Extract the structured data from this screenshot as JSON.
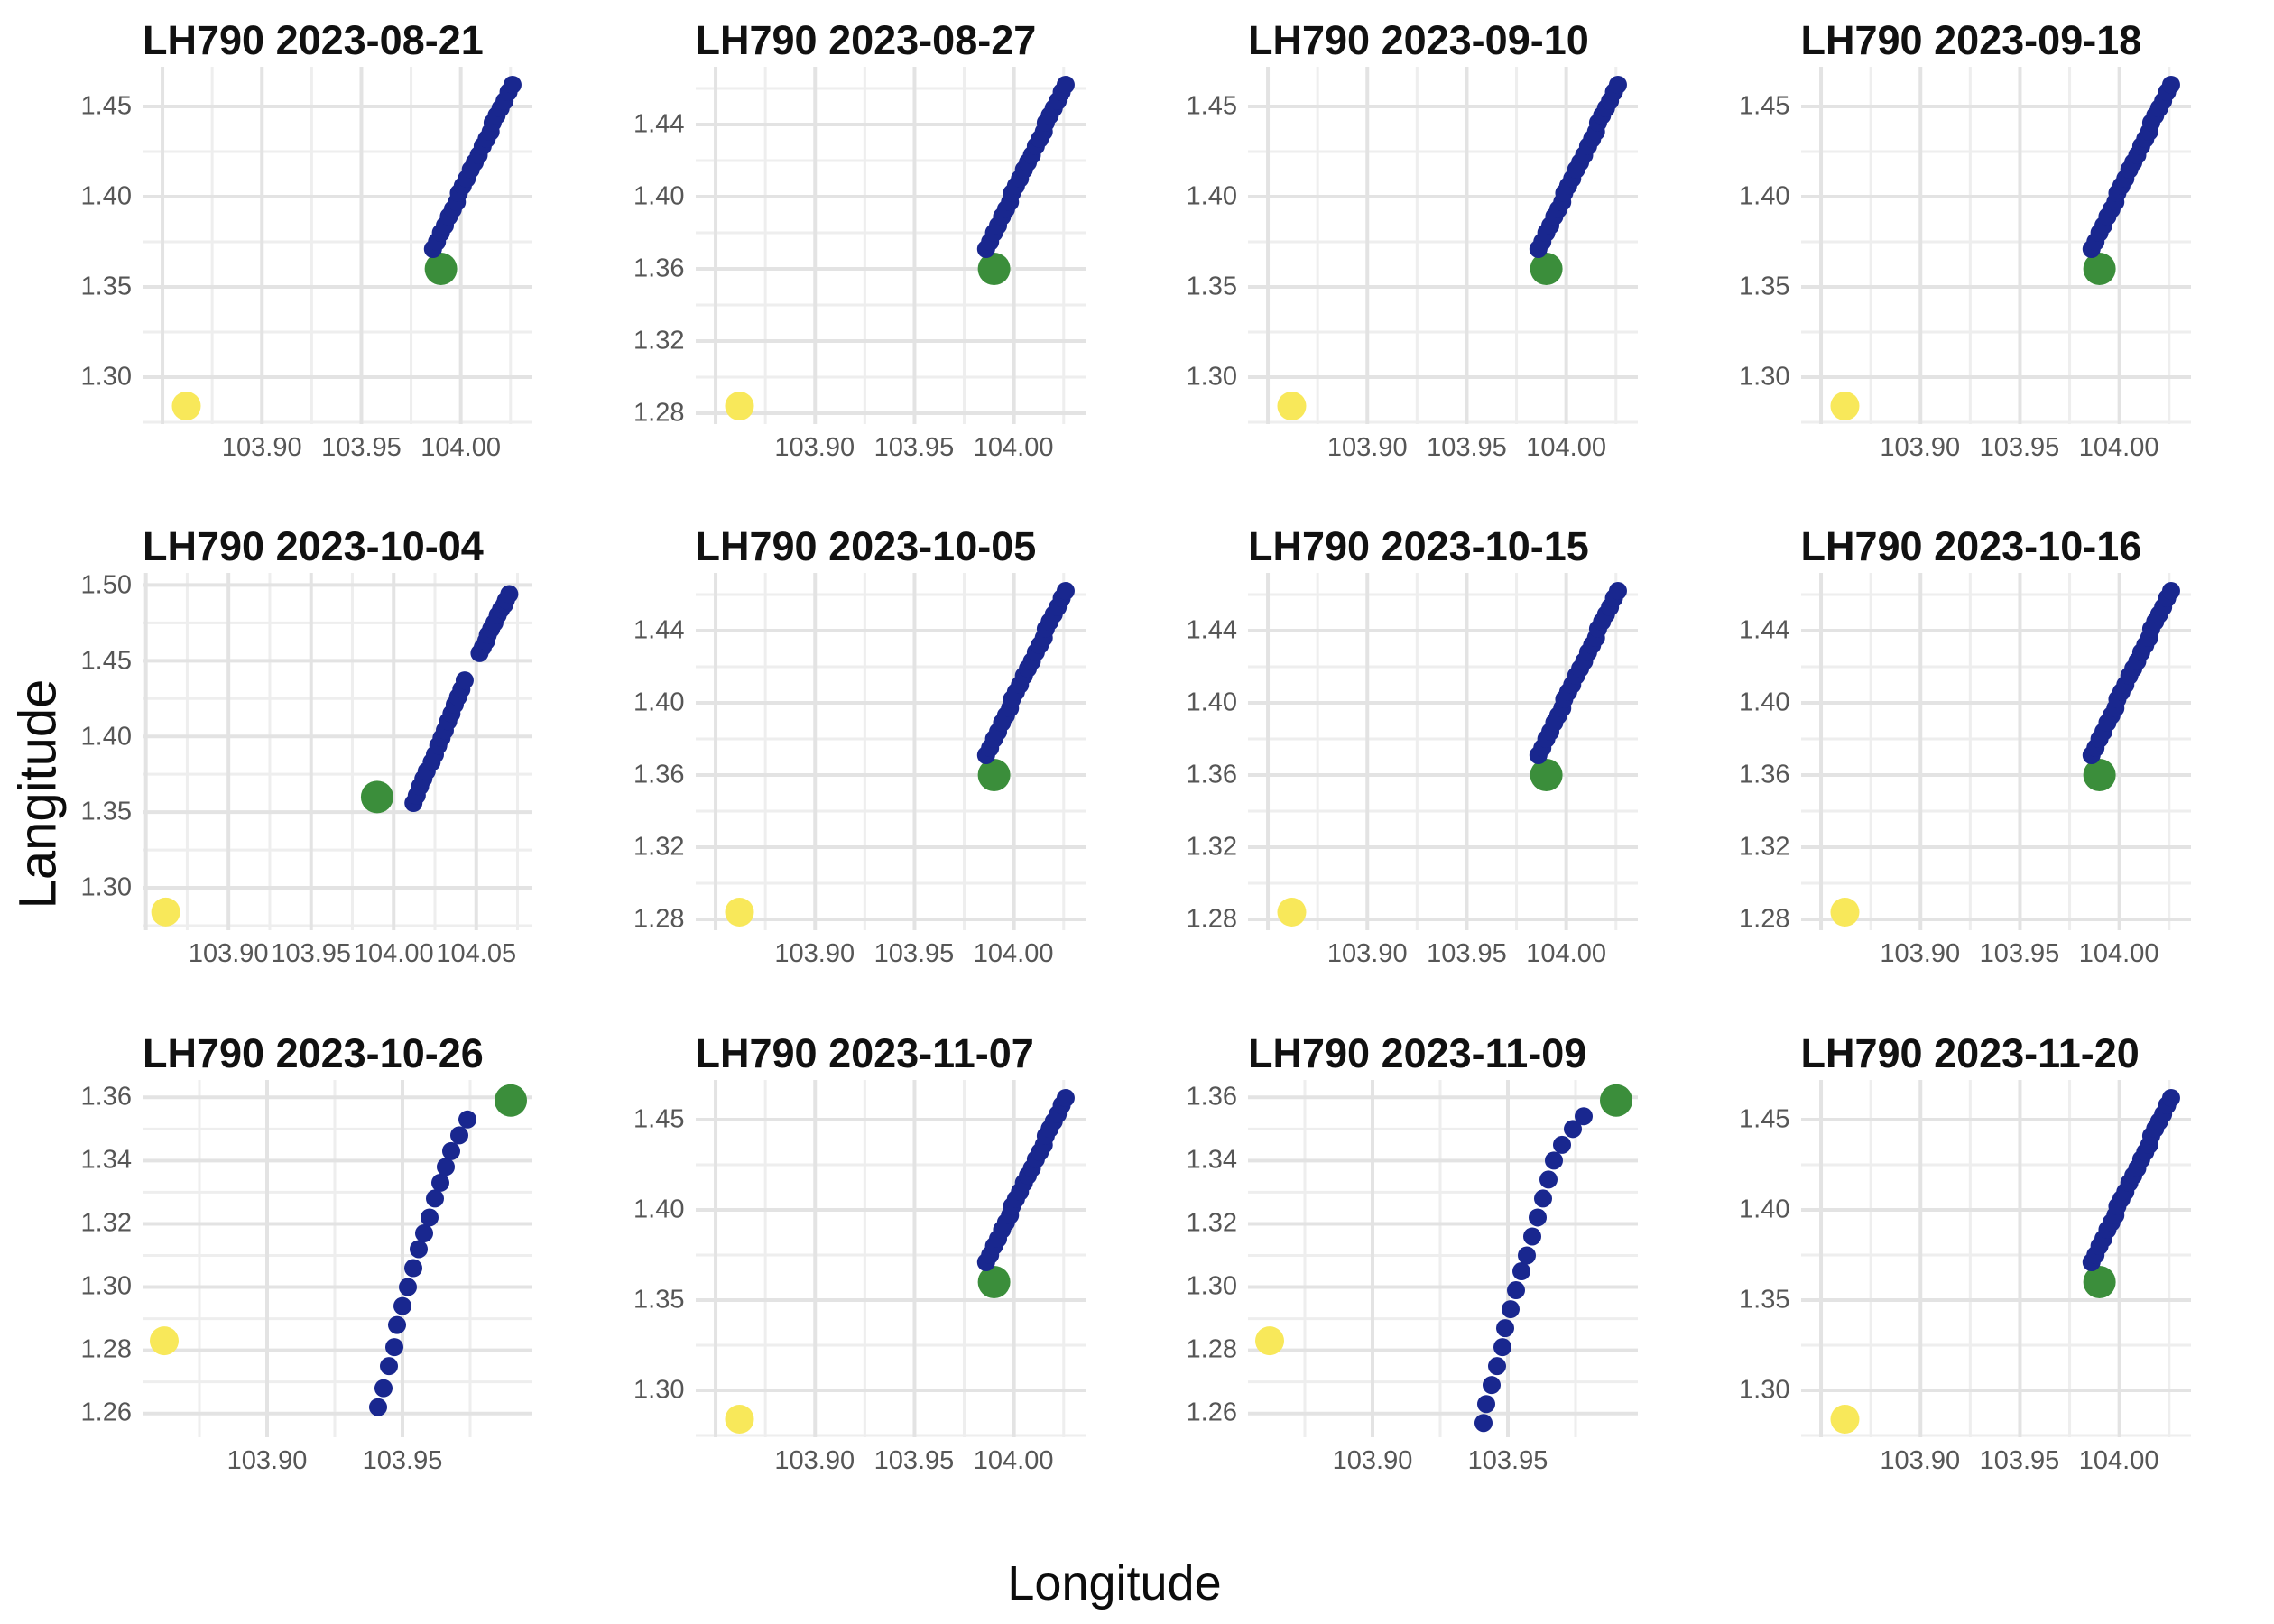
{
  "figure": {
    "x_axis_label": "Longitude",
    "y_axis_label": "Langitude"
  },
  "colors": {
    "background": "#ffffff",
    "title_text": "#111111",
    "axis_label_text": "#0c0c0c",
    "tick_label_text": "#565656",
    "gridline_major": "#e3e3e3",
    "gridline_minor": "#eeeeee",
    "blue_track_point": "#19278f",
    "green_point": "#3b8e3b",
    "yellow_point": "#f8e85a"
  },
  "marker_sizes": {
    "blue_r": 10,
    "green_r": 18,
    "yellow_r": 16
  },
  "chart_data": {
    "type": "scatter",
    "layout": "4x3 small multiples",
    "xlabel": "Longitude",
    "ylabel": "Langitude",
    "grid": "on",
    "legend": "none",
    "tracks": {
      "standard": [
        [
          103.986,
          1.371
        ],
        [
          103.988,
          1.375
        ],
        [
          103.99,
          1.38
        ],
        [
          103.992,
          1.384
        ],
        [
          103.994,
          1.389
        ],
        [
          103.996,
          1.393
        ],
        [
          103.998,
          1.397
        ],
        [
          103.999,
          1.402
        ],
        [
          104.001,
          1.406
        ],
        [
          104.003,
          1.41
        ],
        [
          104.005,
          1.415
        ],
        [
          104.007,
          1.419
        ],
        [
          104.009,
          1.423
        ],
        [
          104.011,
          1.428
        ],
        [
          104.013,
          1.432
        ],
        [
          104.015,
          1.436
        ],
        [
          104.016,
          1.441
        ],
        [
          104.018,
          1.445
        ],
        [
          104.02,
          1.449
        ],
        [
          104.022,
          1.453
        ],
        [
          104.024,
          1.458
        ],
        [
          104.026,
          1.462
        ]
      ],
      "extended_ne": [
        [
          104.012,
          1.356
        ],
        [
          104.014,
          1.361
        ],
        [
          104.016,
          1.367
        ],
        [
          104.018,
          1.372
        ],
        [
          104.02,
          1.377
        ],
        [
          104.023,
          1.383
        ],
        [
          104.025,
          1.388
        ],
        [
          104.027,
          1.394
        ],
        [
          104.029,
          1.399
        ],
        [
          104.031,
          1.404
        ],
        [
          104.033,
          1.41
        ],
        [
          104.035,
          1.415
        ],
        [
          104.037,
          1.421
        ],
        [
          104.039,
          1.426
        ],
        [
          104.041,
          1.431
        ],
        [
          104.043,
          1.437
        ],
        [
          104.052,
          1.455
        ],
        [
          104.054,
          1.459
        ],
        [
          104.056,
          1.463
        ],
        [
          104.057,
          1.467
        ],
        [
          104.059,
          1.471
        ],
        [
          104.061,
          1.475
        ],
        [
          104.063,
          1.48
        ],
        [
          104.065,
          1.484
        ],
        [
          104.067,
          1.487
        ],
        [
          104.068,
          1.49
        ],
        [
          104.07,
          1.494
        ]
      ],
      "south_short": [
        [
          103.941,
          1.262
        ],
        [
          103.943,
          1.268
        ],
        [
          103.945,
          1.275
        ],
        [
          103.947,
          1.281
        ],
        [
          103.948,
          1.288
        ],
        [
          103.95,
          1.294
        ],
        [
          103.952,
          1.3
        ],
        [
          103.954,
          1.306
        ],
        [
          103.956,
          1.312
        ],
        [
          103.958,
          1.317
        ],
        [
          103.96,
          1.322
        ],
        [
          103.962,
          1.328
        ],
        [
          103.964,
          1.333
        ],
        [
          103.966,
          1.338
        ],
        [
          103.968,
          1.343
        ],
        [
          103.971,
          1.348
        ],
        [
          103.974,
          1.353
        ]
      ],
      "south_tall": [
        [
          103.941,
          1.257
        ],
        [
          103.942,
          1.263
        ],
        [
          103.944,
          1.269
        ],
        [
          103.946,
          1.275
        ],
        [
          103.948,
          1.281
        ],
        [
          103.949,
          1.287
        ],
        [
          103.951,
          1.293
        ],
        [
          103.953,
          1.299
        ],
        [
          103.955,
          1.305
        ],
        [
          103.957,
          1.31
        ],
        [
          103.959,
          1.316
        ],
        [
          103.961,
          1.322
        ],
        [
          103.963,
          1.328
        ],
        [
          103.965,
          1.334
        ],
        [
          103.967,
          1.34
        ],
        [
          103.97,
          1.345
        ],
        [
          103.974,
          1.35
        ],
        [
          103.978,
          1.354
        ]
      ]
    },
    "panels": [
      {
        "title": "LH790 2023-08-21",
        "xlim": [
          103.84,
          104.036
        ],
        "ylim": [
          1.274,
          1.472
        ],
        "x_ticks": [
          "103.90",
          "103.95",
          "104.00"
        ],
        "y_ticks": [
          "1.30",
          "1.35",
          "1.40",
          "1.45"
        ],
        "yellow": [
          103.862,
          1.284
        ],
        "green": [
          103.99,
          1.36
        ],
        "track": "standard"
      },
      {
        "title": "LH790 2023-08-27",
        "xlim": [
          103.84,
          104.036
        ],
        "ylim": [
          1.274,
          1.472
        ],
        "x_ticks": [
          "103.90",
          "103.95",
          "104.00"
        ],
        "y_ticks": [
          "1.28",
          "1.32",
          "1.36",
          "1.40",
          "1.44"
        ],
        "yellow": [
          103.862,
          1.284
        ],
        "green": [
          103.99,
          1.36
        ],
        "track": "standard"
      },
      {
        "title": "LH790 2023-09-10",
        "xlim": [
          103.84,
          104.036
        ],
        "ylim": [
          1.274,
          1.472
        ],
        "x_ticks": [
          "103.90",
          "103.95",
          "104.00"
        ],
        "y_ticks": [
          "1.30",
          "1.35",
          "1.40",
          "1.45"
        ],
        "yellow": [
          103.862,
          1.284
        ],
        "green": [
          103.99,
          1.36
        ],
        "track": "standard"
      },
      {
        "title": "LH790 2023-09-18",
        "xlim": [
          103.84,
          104.036
        ],
        "ylim": [
          1.274,
          1.472
        ],
        "x_ticks": [
          "103.90",
          "103.95",
          "104.00"
        ],
        "y_ticks": [
          "1.30",
          "1.35",
          "1.40",
          "1.45"
        ],
        "yellow": [
          103.862,
          1.284
        ],
        "green": [
          103.99,
          1.36
        ],
        "track": "standard"
      },
      {
        "title": "LH790 2023-10-04",
        "xlim": [
          103.848,
          104.084
        ],
        "ylim": [
          1.272,
          1.508
        ],
        "x_ticks": [
          "103.90",
          "103.95",
          "104.00",
          "104.05"
        ],
        "y_ticks": [
          "1.30",
          "1.35",
          "1.40",
          "1.45",
          "1.50"
        ],
        "yellow": [
          103.862,
          1.284
        ],
        "green": [
          103.99,
          1.36
        ],
        "track": "extended_ne"
      },
      {
        "title": "LH790 2023-10-05",
        "xlim": [
          103.84,
          104.036
        ],
        "ylim": [
          1.274,
          1.472
        ],
        "x_ticks": [
          "103.90",
          "103.95",
          "104.00"
        ],
        "y_ticks": [
          "1.28",
          "1.32",
          "1.36",
          "1.40",
          "1.44"
        ],
        "yellow": [
          103.862,
          1.284
        ],
        "green": [
          103.99,
          1.36
        ],
        "track": "standard"
      },
      {
        "title": "LH790 2023-10-15",
        "xlim": [
          103.84,
          104.036
        ],
        "ylim": [
          1.274,
          1.472
        ],
        "x_ticks": [
          "103.90",
          "103.95",
          "104.00"
        ],
        "y_ticks": [
          "1.28",
          "1.32",
          "1.36",
          "1.40",
          "1.44"
        ],
        "yellow": [
          103.862,
          1.284
        ],
        "green": [
          103.99,
          1.36
        ],
        "track": "standard"
      },
      {
        "title": "LH790 2023-10-16",
        "xlim": [
          103.84,
          104.036
        ],
        "ylim": [
          1.274,
          1.472
        ],
        "x_ticks": [
          "103.90",
          "103.95",
          "104.00"
        ],
        "y_ticks": [
          "1.28",
          "1.32",
          "1.36",
          "1.40",
          "1.44"
        ],
        "yellow": [
          103.862,
          1.284
        ],
        "green": [
          103.99,
          1.36
        ],
        "track": "standard"
      },
      {
        "title": "LH790 2023-10-26",
        "xlim": [
          103.854,
          103.998
        ],
        "ylim": [
          1.2525,
          1.3655
        ],
        "x_ticks": [
          "103.90",
          "103.95"
        ],
        "y_ticks": [
          "1.26",
          "1.28",
          "1.30",
          "1.32",
          "1.34",
          "1.36"
        ],
        "yellow": [
          103.862,
          1.283
        ],
        "green": [
          103.99,
          1.359
        ],
        "track": "south_short"
      },
      {
        "title": "LH790 2023-11-07",
        "xlim": [
          103.84,
          104.036
        ],
        "ylim": [
          1.274,
          1.472
        ],
        "x_ticks": [
          "103.90",
          "103.95",
          "104.00"
        ],
        "y_ticks": [
          "1.30",
          "1.35",
          "1.40",
          "1.45"
        ],
        "yellow": [
          103.862,
          1.284
        ],
        "green": [
          103.99,
          1.36
        ],
        "track": "standard"
      },
      {
        "title": "LH790 2023-11-09",
        "xlim": [
          103.854,
          103.998
        ],
        "ylim": [
          1.2525,
          1.3655
        ],
        "x_ticks": [
          "103.90",
          "103.95"
        ],
        "y_ticks": [
          "1.26",
          "1.28",
          "1.30",
          "1.32",
          "1.34",
          "1.36"
        ],
        "yellow": [
          103.862,
          1.283
        ],
        "green": [
          103.99,
          1.359
        ],
        "track": "south_tall"
      },
      {
        "title": "LH790 2023-11-20",
        "xlim": [
          103.84,
          104.036
        ],
        "ylim": [
          1.274,
          1.472
        ],
        "x_ticks": [
          "103.90",
          "103.95",
          "104.00"
        ],
        "y_ticks": [
          "1.30",
          "1.35",
          "1.40",
          "1.45"
        ],
        "yellow": [
          103.862,
          1.284
        ],
        "green": [
          103.99,
          1.36
        ],
        "track": "standard"
      }
    ]
  }
}
